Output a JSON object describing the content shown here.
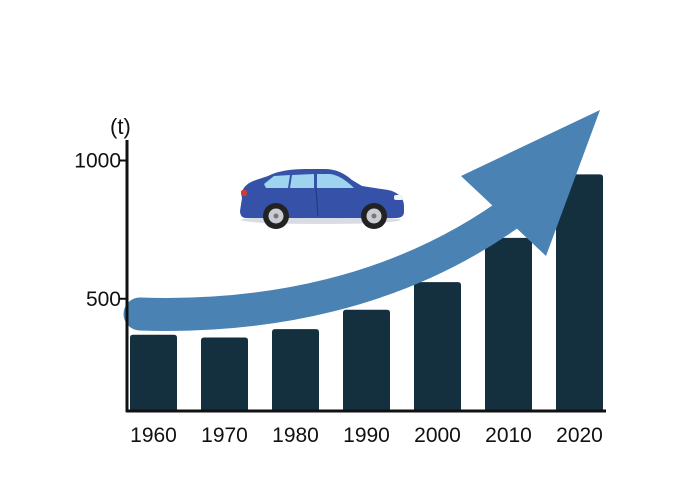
{
  "chart_data": {
    "type": "bar",
    "title": "",
    "xlabel": "",
    "ylabel": "(t)",
    "ylim": [
      0,
      1000
    ],
    "y_ticks": [
      "500",
      "1000"
    ],
    "categories": [
      "1960",
      "1970",
      "1980",
      "1990",
      "2000",
      "2010",
      "2020"
    ],
    "values": [
      370,
      360,
      390,
      460,
      560,
      720,
      950
    ],
    "grid": false,
    "legend": "none",
    "trend_arrow": "increasing",
    "colors": {
      "bar": "#142f3d",
      "arrow": "#4a82b4",
      "axis": "#111111",
      "car_body": "#3552a8",
      "car_window": "#9fd4ee"
    }
  }
}
